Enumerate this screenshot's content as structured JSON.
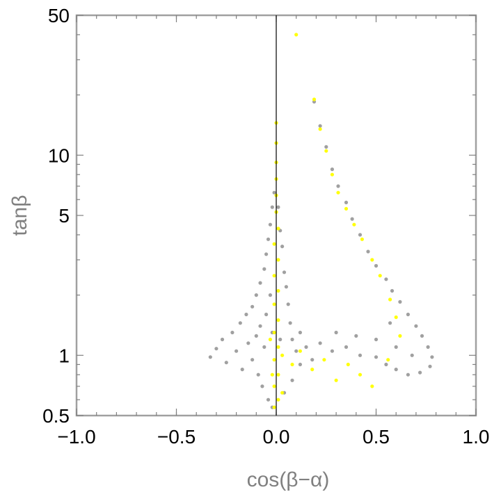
{
  "chart_data": {
    "type": "scatter",
    "title": "",
    "xlabel": "cos(β−α)",
    "ylabel": "tanβ",
    "xlim": [
      -1.0,
      1.0
    ],
    "ylim": [
      0.5,
      50
    ],
    "yscale": "log",
    "grid": false,
    "x_ticks": [
      {
        "value": -1.0,
        "label": "−1.0"
      },
      {
        "value": -0.5,
        "label": "−0.5"
      },
      {
        "value": 0.0,
        "label": "0.0"
      },
      {
        "value": 0.5,
        "label": "0.5"
      },
      {
        "value": 1.0,
        "label": "1.0"
      }
    ],
    "y_ticks": [
      {
        "value": 0.5,
        "label": "0.5"
      },
      {
        "value": 1,
        "label": "1"
      },
      {
        "value": 5,
        "label": "5"
      },
      {
        "value": 10,
        "label": "10"
      },
      {
        "value": 50,
        "label": "50"
      }
    ],
    "reference_line": {
      "x": 0.0
    },
    "series": [
      {
        "color": "#808080",
        "points": [
          [
            -0.33,
            0.98
          ],
          [
            -0.3,
            1.08
          ],
          [
            -0.27,
            1.2
          ],
          [
            -0.25,
            0.92
          ],
          [
            -0.22,
            1.3
          ],
          [
            -0.2,
            1.05
          ],
          [
            -0.18,
            1.45
          ],
          [
            -0.17,
            0.85
          ],
          [
            -0.15,
            1.6
          ],
          [
            -0.14,
            1.15
          ],
          [
            -0.12,
            1.75
          ],
          [
            -0.12,
            0.95
          ],
          [
            -0.1,
            2.0
          ],
          [
            -0.1,
            1.25
          ],
          [
            -0.09,
            0.8
          ],
          [
            -0.08,
            2.3
          ],
          [
            -0.08,
            1.4
          ],
          [
            -0.07,
            0.7
          ],
          [
            -0.06,
            2.7
          ],
          [
            -0.06,
            1.1
          ],
          [
            -0.05,
            3.2
          ],
          [
            -0.05,
            1.6
          ],
          [
            -0.04,
            0.6
          ],
          [
            -0.04,
            3.8
          ],
          [
            -0.03,
            2.0
          ],
          [
            -0.03,
            4.5
          ],
          [
            -0.02,
            0.55
          ],
          [
            -0.02,
            5.5
          ],
          [
            -0.02,
            1.3
          ],
          [
            -0.01,
            6.5
          ],
          [
            0.01,
            5.5
          ],
          [
            0.02,
            4.2
          ],
          [
            0.02,
            1.2
          ],
          [
            0.03,
            3.5
          ],
          [
            0.04,
            2.6
          ],
          [
            0.04,
            0.65
          ],
          [
            0.05,
            2.2
          ],
          [
            0.06,
            1.8
          ],
          [
            0.07,
            1.45
          ],
          [
            0.08,
            1.2
          ],
          [
            0.08,
            0.75
          ],
          [
            0.1,
            1.05
          ],
          [
            0.12,
            1.3
          ],
          [
            0.12,
            0.9
          ],
          [
            0.15,
            1.1
          ],
          [
            0.18,
            0.95
          ],
          [
            0.22,
            1.15
          ],
          [
            0.28,
            1.05
          ],
          [
            0.35,
            1.1
          ],
          [
            0.42,
            1.0
          ],
          [
            0.5,
            0.98
          ],
          [
            0.55,
            0.9
          ],
          [
            0.6,
            0.85
          ],
          [
            0.66,
            0.8
          ],
          [
            0.72,
            0.82
          ],
          [
            0.77,
            0.88
          ],
          [
            0.78,
            0.98
          ],
          [
            0.76,
            1.1
          ],
          [
            0.73,
            1.25
          ],
          [
            0.7,
            1.4
          ],
          [
            0.66,
            1.6
          ],
          [
            0.62,
            1.85
          ],
          [
            0.58,
            2.1
          ],
          [
            0.55,
            2.4
          ],
          [
            0.5,
            2.8
          ],
          [
            0.46,
            3.3
          ],
          [
            0.42,
            4.0
          ],
          [
            0.38,
            4.8
          ],
          [
            0.35,
            5.8
          ],
          [
            0.31,
            7.0
          ],
          [
            0.28,
            8.5
          ],
          [
            0.25,
            11.0
          ],
          [
            0.22,
            14.0
          ],
          [
            0.19,
            18.5
          ],
          [
            0.4,
            1.25
          ],
          [
            0.3,
            1.3
          ],
          [
            0.6,
            1.1
          ],
          [
            0.68,
            1.0
          ],
          [
            0.5,
            1.2
          ],
          [
            0.57,
            1.45
          ]
        ]
      },
      {
        "color": "#ffff00",
        "points": [
          [
            -0.01,
            0.55
          ],
          [
            0.01,
            0.6
          ],
          [
            -0.01,
            0.7
          ],
          [
            0.01,
            0.8
          ],
          [
            -0.01,
            0.95
          ],
          [
            0.01,
            1.1
          ],
          [
            -0.01,
            1.3
          ],
          [
            0.01,
            1.5
          ],
          [
            -0.01,
            1.8
          ],
          [
            0.01,
            2.1
          ],
          [
            -0.01,
            2.5
          ],
          [
            0.01,
            3.0
          ],
          [
            -0.01,
            3.6
          ],
          [
            0.01,
            4.3
          ],
          [
            0.0,
            5.2
          ],
          [
            0.0,
            6.3
          ],
          [
            0.0,
            7.6
          ],
          [
            0.0,
            9.2
          ],
          [
            0.0,
            11.5
          ],
          [
            0.0,
            14.5
          ],
          [
            -0.03,
            1.2
          ],
          [
            0.03,
            1.0
          ],
          [
            -0.02,
            0.8
          ],
          [
            0.03,
            0.65
          ],
          [
            0.08,
            0.9
          ],
          [
            0.12,
            1.05
          ],
          [
            0.18,
            0.85
          ],
          [
            0.24,
            0.95
          ],
          [
            0.3,
            0.75
          ],
          [
            0.36,
            0.9
          ],
          [
            0.42,
            0.8
          ],
          [
            0.48,
            0.7
          ],
          [
            0.56,
            0.95
          ],
          [
            0.62,
            1.25
          ],
          [
            0.6,
            1.55
          ],
          [
            0.57,
            1.9
          ],
          [
            0.52,
            2.5
          ],
          [
            0.48,
            3.0
          ],
          [
            0.43,
            3.8
          ],
          [
            0.39,
            4.5
          ],
          [
            0.35,
            5.4
          ],
          [
            0.31,
            6.5
          ],
          [
            0.28,
            8.0
          ],
          [
            0.25,
            10.5
          ],
          [
            0.22,
            13.5
          ],
          [
            0.19,
            19.0
          ],
          [
            0.1,
            40.0
          ]
        ]
      }
    ]
  }
}
